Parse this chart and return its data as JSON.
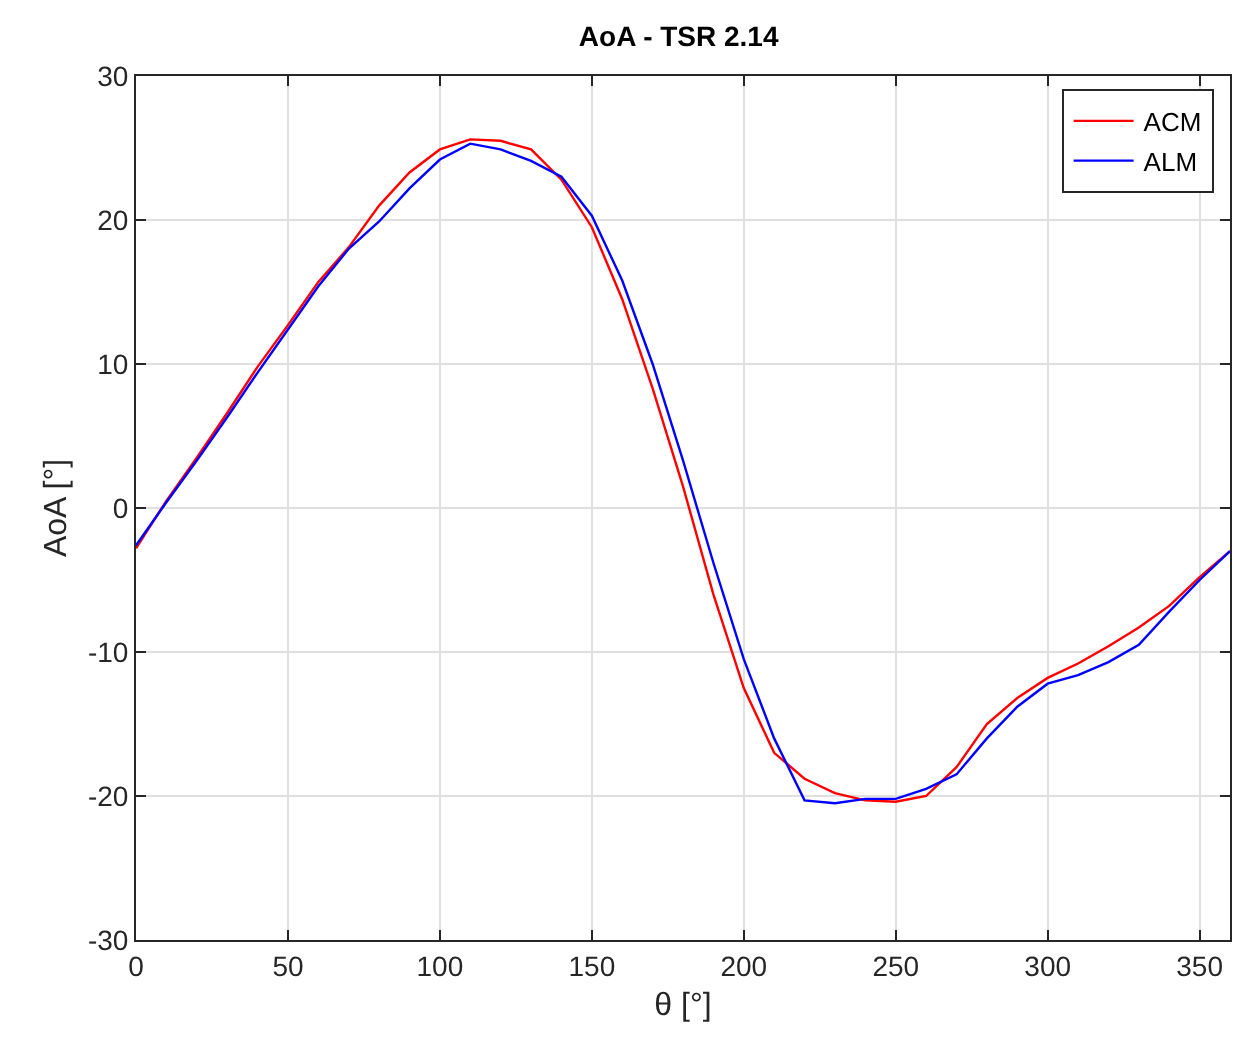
{
  "chart_data": {
    "type": "line",
    "title": "AoA - TSR 2.14",
    "xlabel": "θ [°]",
    "ylabel": "AoA [°]",
    "x": [
      0,
      10,
      20,
      30,
      40,
      50,
      60,
      70,
      80,
      90,
      100,
      110,
      120,
      130,
      140,
      150,
      160,
      170,
      180,
      190,
      200,
      210,
      220,
      230,
      240,
      250,
      260,
      270,
      280,
      290,
      300,
      310,
      320,
      330,
      340,
      350,
      360
    ],
    "series": [
      {
        "name": "ACM",
        "color": "#ff0000",
        "values": [
          -2.8,
          0.5,
          3.5,
          6.6,
          9.8,
          12.7,
          15.7,
          18.1,
          21.0,
          23.3,
          24.9,
          25.6,
          25.5,
          24.9,
          22.8,
          19.5,
          14.5,
          8.3,
          1.5,
          -6,
          -12.5,
          -17,
          -18.8,
          -19.8,
          -20.3,
          -20.4,
          -20.0,
          -18,
          -15,
          -13.2,
          -11.8,
          -10.8,
          -9.6,
          -8.3,
          -6.8,
          -4.8,
          -3
        ]
      },
      {
        "name": "ALM",
        "color": "#0000ff",
        "values": [
          -2.6,
          0.4,
          3.3,
          6.3,
          9.4,
          12.4,
          15.4,
          18.0,
          19.9,
          22.2,
          24.2,
          25.3,
          24.9,
          24.1,
          23.0,
          20.3,
          15.8,
          10,
          3.3,
          -3.8,
          -10.5,
          -16,
          -20.3,
          -20.5,
          -20.2,
          -20.2,
          -19.5,
          -18.5,
          -16,
          -13.8,
          -12.2,
          -11.6,
          -10.7,
          -9.5,
          -7.2,
          -5,
          -3
        ]
      }
    ],
    "xlim": [
      0,
      360
    ],
    "xticks": [
      0,
      50,
      100,
      150,
      200,
      250,
      300,
      350
    ],
    "ylim": [
      -30,
      30
    ],
    "yticks": [
      -30,
      -20,
      -10,
      0,
      10,
      20,
      30
    ],
    "grid": true,
    "legend": "top right",
    "marker": "none",
    "line_style": "solid"
  }
}
